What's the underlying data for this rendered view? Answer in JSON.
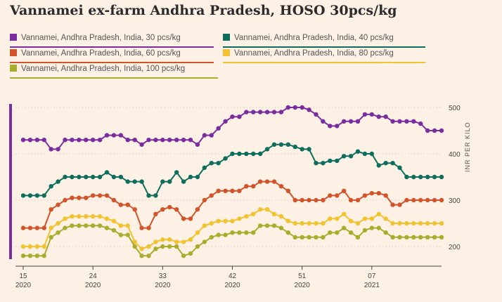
{
  "title": "Vannamei ex-farm Andhra Pradesh, HOSO 30pcs/kg",
  "chart_data": {
    "type": "line",
    "title": "Vannamei ex-farm Andhra Pradesh, HOSO 30pcs/kg",
    "ylabel": "INR PER KILO",
    "ylim": [
      170,
      520
    ],
    "yticks": [
      200,
      300,
      400,
      500
    ],
    "grid": true,
    "legend_position": "top",
    "x_count": 61,
    "x_ticks": [
      {
        "index": 0,
        "week": "15",
        "year": "2020"
      },
      {
        "index": 10,
        "week": "24",
        "year": "2020"
      },
      {
        "index": 20,
        "week": "33",
        "year": "2020"
      },
      {
        "index": 30,
        "week": "42",
        "year": "2020"
      },
      {
        "index": 40,
        "week": "51",
        "year": "2020"
      },
      {
        "index": 50,
        "week": "07",
        "year": "2021"
      }
    ],
    "series": [
      {
        "name": "Vannamei, Andhra Pradesh, India, 30 pcs/kg",
        "color": "#7a2d9e",
        "values": [
          430,
          430,
          430,
          430,
          410,
          410,
          430,
          430,
          430,
          430,
          430,
          430,
          440,
          440,
          440,
          430,
          430,
          420,
          430,
          430,
          430,
          430,
          430,
          430,
          430,
          420,
          440,
          440,
          455,
          470,
          480,
          480,
          490,
          490,
          490,
          490,
          490,
          490,
          500,
          500,
          500,
          495,
          485,
          470,
          460,
          460,
          470,
          470,
          470,
          485,
          485,
          480,
          480,
          470,
          470,
          470,
          470,
          465,
          450,
          450,
          450
        ]
      },
      {
        "name": "Vannamei, Andhra Pradesh, India, 40 pcs/kg",
        "color": "#0d6e5e",
        "values": [
          310,
          310,
          310,
          310,
          330,
          340,
          350,
          350,
          350,
          350,
          350,
          350,
          360,
          350,
          350,
          340,
          340,
          340,
          310,
          310,
          340,
          340,
          360,
          340,
          350,
          350,
          370,
          380,
          380,
          390,
          400,
          400,
          400,
          400,
          400,
          410,
          420,
          420,
          420,
          415,
          410,
          410,
          380,
          380,
          385,
          385,
          395,
          395,
          405,
          400,
          400,
          375,
          380,
          380,
          370,
          350,
          350,
          350,
          350,
          350,
          350
        ]
      },
      {
        "name": "Vannamei, Andhra Pradesh, India, 60 pcs/kg",
        "color": "#d1542a",
        "values": [
          240,
          240,
          240,
          240,
          280,
          290,
          300,
          305,
          305,
          305,
          310,
          310,
          310,
          300,
          290,
          290,
          280,
          240,
          240,
          270,
          280,
          285,
          280,
          260,
          260,
          280,
          300,
          310,
          320,
          320,
          320,
          320,
          330,
          330,
          340,
          340,
          340,
          330,
          320,
          300,
          300,
          300,
          300,
          300,
          310,
          310,
          320,
          300,
          300,
          310,
          315,
          315,
          310,
          290,
          290,
          300,
          300,
          300,
          300,
          300,
          300
        ]
      },
      {
        "name": "Vannamei, Andhra Pradesh, India, 80 pcs/kg",
        "color": "#f2c230",
        "values": [
          200,
          200,
          200,
          200,
          240,
          250,
          260,
          265,
          265,
          265,
          265,
          265,
          260,
          255,
          245,
          245,
          210,
          195,
          200,
          210,
          215,
          215,
          210,
          210,
          215,
          230,
          245,
          250,
          255,
          255,
          255,
          260,
          265,
          270,
          280,
          280,
          270,
          265,
          255,
          250,
          250,
          250,
          250,
          250,
          260,
          260,
          270,
          255,
          250,
          260,
          260,
          270,
          260,
          250,
          250,
          250,
          250,
          250,
          250,
          250,
          250
        ]
      },
      {
        "name": "Vannamei, Andhra Pradesh, India, 100 pcs/kg",
        "color": "#a8ad2e",
        "values": [
          180,
          180,
          180,
          180,
          220,
          230,
          240,
          245,
          245,
          245,
          245,
          245,
          240,
          235,
          225,
          225,
          200,
          180,
          180,
          195,
          200,
          200,
          200,
          180,
          185,
          200,
          210,
          220,
          225,
          225,
          230,
          230,
          230,
          230,
          245,
          245,
          245,
          240,
          230,
          220,
          220,
          220,
          220,
          220,
          230,
          230,
          240,
          230,
          220,
          235,
          240,
          240,
          230,
          220,
          220,
          220,
          220,
          220,
          220,
          220,
          220
        ]
      }
    ]
  },
  "legend": [
    {
      "label": "Vannamei, Andhra Pradesh, India, 30 pcs/kg",
      "color": "#7a2d9e"
    },
    {
      "label": "Vannamei, Andhra Pradesh, India, 40 pcs/kg",
      "color": "#0d6e5e"
    },
    {
      "label": "Vannamei, Andhra Pradesh, India, 60 pcs/kg",
      "color": "#d1542a"
    },
    {
      "label": "Vannamei, Andhra Pradesh, India, 80 pcs/kg",
      "color": "#f2c230"
    },
    {
      "label": "Vannamei, Andhra Pradesh, India, 100 pcs/kg",
      "color": "#a8ad2e"
    }
  ]
}
